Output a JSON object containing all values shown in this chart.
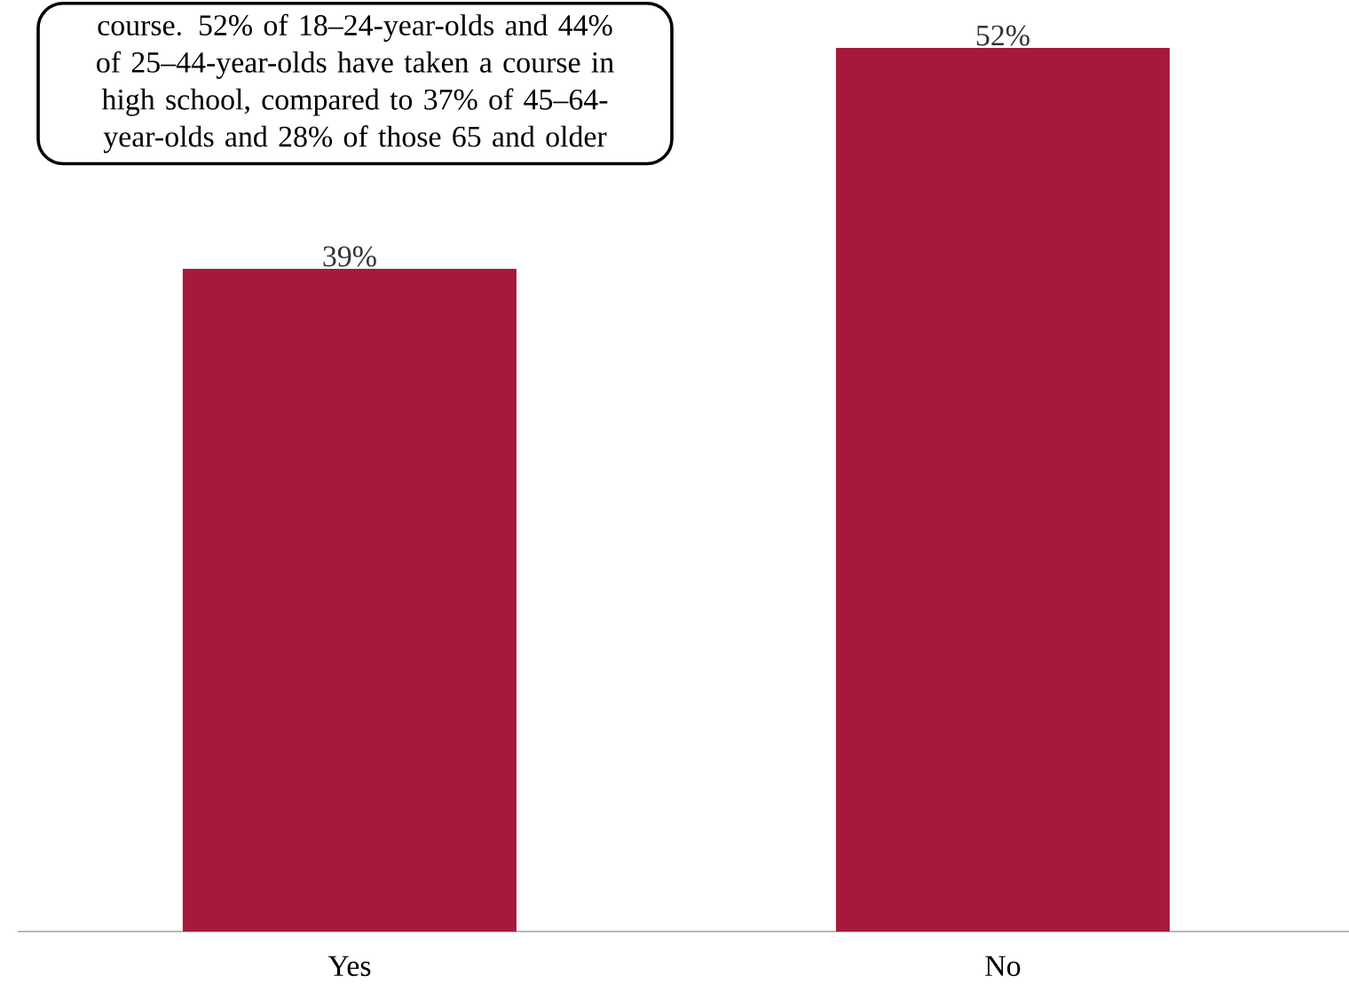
{
  "chart_data": {
    "type": "bar",
    "categories": [
      "Yes",
      "No"
    ],
    "values": [
      39,
      52
    ],
    "value_labels": [
      "39%",
      "52%"
    ],
    "color": "#a51a3b",
    "annotations": [
      "course. 52% of 18–24-year-olds and 44% of 25–44-year-olds have taken a course in high school, compared to 37% of 45–64-year-olds and 28% of those 65 and older"
    ]
  }
}
